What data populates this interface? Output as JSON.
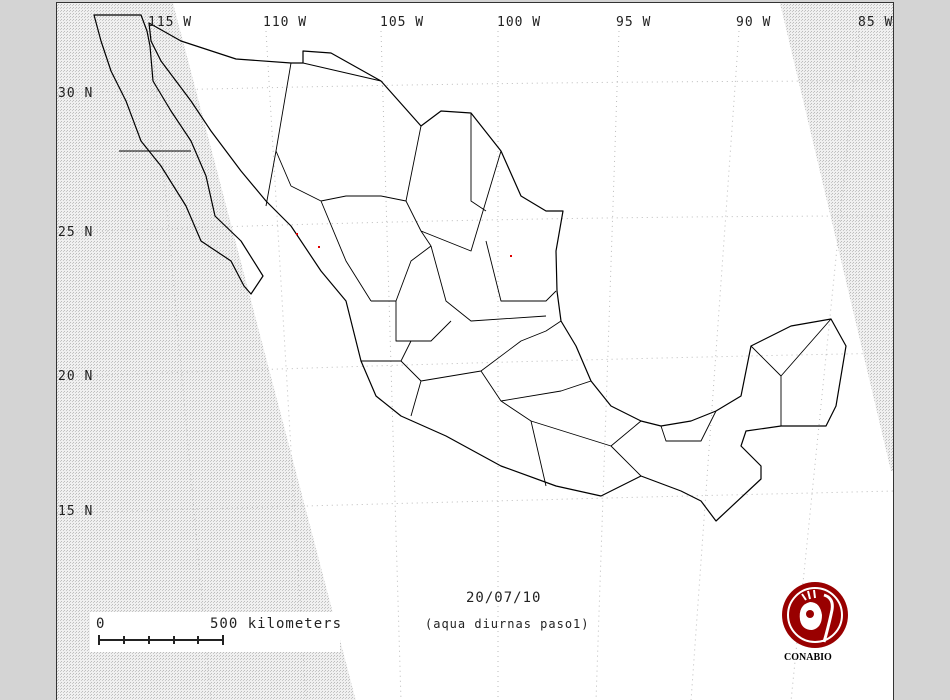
{
  "map": {
    "longitude_labels": [
      "115 W",
      "110 W",
      "105 W",
      "100 W",
      "95 W",
      "90 W",
      "85 W"
    ],
    "latitude_labels": [
      "30 N",
      "25 N",
      "20 N",
      "15 N"
    ],
    "date": "20/07/10",
    "subtitle": "(aqua diurnas paso1)",
    "scale": {
      "start": "0",
      "end": "500 kilometers"
    },
    "logo_text": "CONABIO",
    "colors": {
      "background": "#d4d4d4",
      "outline": "#000000",
      "hotspot": "#e00000",
      "logo": "#990000",
      "no_data_hatch": "#c8c8c8"
    },
    "hotspots_count_visible": 3
  }
}
